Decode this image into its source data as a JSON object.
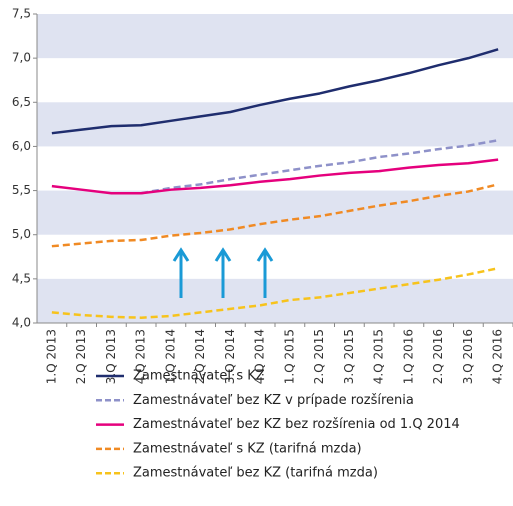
{
  "chart_data": {
    "type": "line",
    "categories": [
      "1.Q 2013",
      "2.Q 2013",
      "3.Q 2013",
      "4.Q 2013",
      "1.Q 2014",
      "2.Q 2014",
      "3.Q 2014",
      "4.Q 2014",
      "1.Q 2015",
      "2.Q 2015",
      "3.Q 2015",
      "4.Q 2015",
      "1.Q 2016",
      "2.Q 2016",
      "3.Q 2016",
      "4.Q 2016"
    ],
    "series": [
      {
        "name": "Zamestnávateľ s KZ",
        "color": "#1f2d6e",
        "dashed": false,
        "values": [
          6.15,
          6.19,
          6.23,
          6.24,
          6.29,
          6.34,
          6.39,
          6.47,
          6.54,
          6.6,
          6.68,
          6.75,
          6.83,
          6.92,
          7.0,
          7.1
        ]
      },
      {
        "name": "Zamestnávateľ bez KZ v prípade rozšírenia",
        "color": "#8e91c9",
        "dashed": true,
        "values": [
          null,
          null,
          null,
          5.47,
          5.53,
          5.57,
          5.63,
          5.68,
          5.73,
          5.78,
          5.82,
          5.88,
          5.92,
          5.97,
          6.01,
          6.07
        ]
      },
      {
        "name": "Zamestnávateľ bez KZ bez rozšírenia od 1.Q 2014",
        "color": "#e5007d",
        "dashed": false,
        "values": [
          5.55,
          5.51,
          5.47,
          5.47,
          5.51,
          5.53,
          5.56,
          5.6,
          5.63,
          5.67,
          5.7,
          5.72,
          5.76,
          5.79,
          5.81,
          5.85
        ]
      },
      {
        "name": "Zamestnávateľ s KZ (tarifná mzda)",
        "color": "#f08a24",
        "dashed": true,
        "values": [
          4.87,
          4.9,
          4.93,
          4.94,
          4.99,
          5.02,
          5.06,
          5.12,
          5.17,
          5.21,
          5.27,
          5.33,
          5.38,
          5.44,
          5.49,
          5.57
        ]
      },
      {
        "name": "Zamestnávateľ bez KZ (tarifná mzda)",
        "color": "#f7c31c",
        "dashed": true,
        "values": [
          4.12,
          4.09,
          4.07,
          4.06,
          4.08,
          4.12,
          4.16,
          4.2,
          4.26,
          4.29,
          4.34,
          4.39,
          4.44,
          4.49,
          4.55,
          4.62
        ]
      }
    ],
    "ylim": [
      4.0,
      7.5
    ],
    "yticks": [
      {
        "value": 4.0,
        "label": "4,0"
      },
      {
        "value": 4.5,
        "label": "4,5"
      },
      {
        "value": 5.0,
        "label": "5,0"
      },
      {
        "value": 5.5,
        "label": "5,5"
      },
      {
        "value": 6.0,
        "label": "6,0"
      },
      {
        "value": 6.5,
        "label": "6,5"
      },
      {
        "value": 7.0,
        "label": "7,0"
      },
      {
        "value": 7.5,
        "label": "7,5"
      }
    ],
    "banded_background": true,
    "legend": "bottom"
  }
}
